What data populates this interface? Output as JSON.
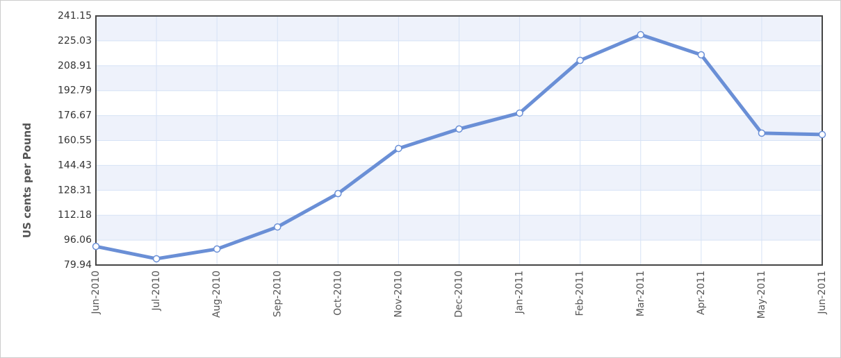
{
  "chart_data": {
    "type": "line",
    "y_label": "US cents per Pound",
    "categories": [
      "Jun-2010",
      "Jul-2010",
      "Aug-2010",
      "Sep-2010",
      "Oct-2010",
      "Nov-2010",
      "Dec-2010",
      "Jan-2011",
      "Feb-2011",
      "Mar-2011",
      "Apr-2011",
      "May-2011",
      "Jun-2011"
    ],
    "series": [
      {
        "name": "US cents per Pound",
        "color": "#6a8fd6",
        "values": [
          92.0,
          84.0,
          90.3,
          104.6,
          126.2,
          155.4,
          168.0,
          178.3,
          212.4,
          229.0,
          216.0,
          165.3,
          164.4
        ]
      }
    ],
    "ylim": [
      79.94,
      241.15
    ],
    "yticks": [
      79.94,
      96.06,
      112.18,
      128.31,
      144.43,
      160.55,
      176.67,
      192.79,
      208.91,
      225.03,
      241.15
    ],
    "grid": true
  }
}
